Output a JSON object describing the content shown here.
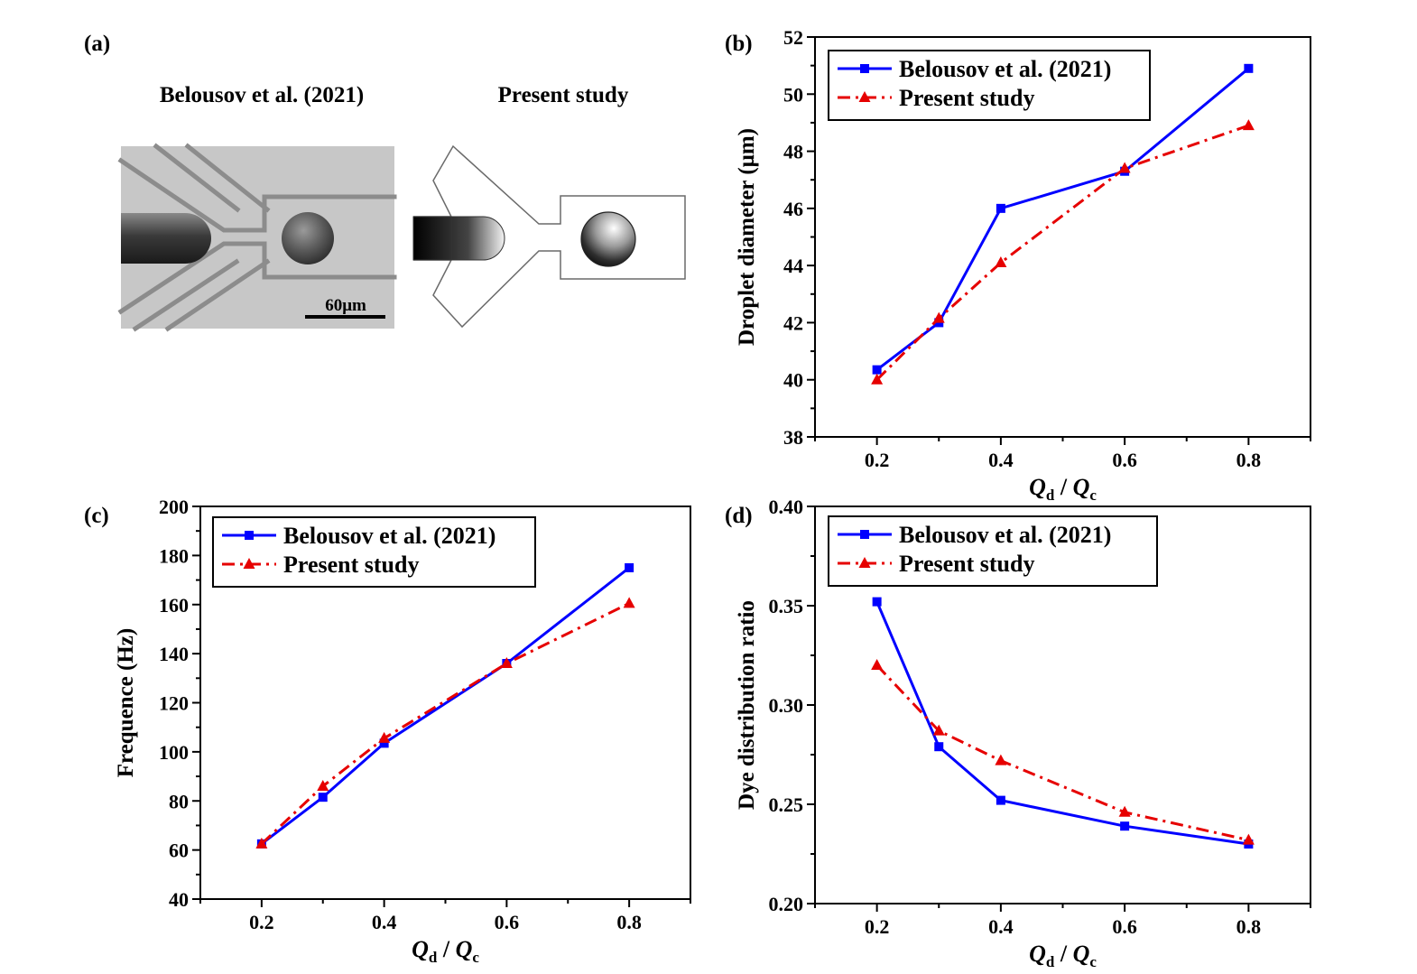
{
  "panel_a": {
    "label": "(a)",
    "left_title": "Belousov et al. (2021)",
    "right_title": "Present study",
    "scale_bar_label": "60μm"
  },
  "chart_data": [
    {
      "panel": "(b)",
      "type": "line",
      "xlabel": "Q_d / Q_c",
      "ylabel": "Droplet diameter (μm)",
      "xlim": [
        0.1,
        0.9
      ],
      "ylim": [
        38,
        52
      ],
      "xticks": [
        "0.2",
        "0.4",
        "0.6",
        "0.8"
      ],
      "xtick_values": [
        0.2,
        0.4,
        0.6,
        0.8
      ],
      "yticks": [
        "38",
        "40",
        "42",
        "44",
        "46",
        "48",
        "50",
        "52"
      ],
      "ytick_values": [
        38,
        40,
        42,
        44,
        46,
        48,
        50,
        52
      ],
      "legend_position": "top-left",
      "series": [
        {
          "name": "Belousov et al. (2021)",
          "color": "#0000ff",
          "marker": "square",
          "dash": "solid",
          "x": [
            0.2,
            0.3,
            0.4,
            0.6,
            0.8
          ],
          "y": [
            40.35,
            42.0,
            46.0,
            47.3,
            50.9
          ]
        },
        {
          "name": "Present study",
          "color": "#e60000",
          "marker": "triangle",
          "dash": "dashdot",
          "x": [
            0.2,
            0.3,
            0.4,
            0.6,
            0.8
          ],
          "y": [
            40.0,
            42.15,
            44.1,
            47.4,
            48.9
          ]
        }
      ]
    },
    {
      "panel": "(c)",
      "type": "line",
      "xlabel": "Q_d / Q_c",
      "ylabel": "Frequence (Hz)",
      "xlim": [
        0.1,
        0.9
      ],
      "ylim": [
        40,
        200
      ],
      "xticks": [
        "0.2",
        "0.4",
        "0.6",
        "0.8"
      ],
      "xtick_values": [
        0.2,
        0.4,
        0.6,
        0.8
      ],
      "yticks": [
        "40",
        "60",
        "80",
        "100",
        "120",
        "140",
        "160",
        "180",
        "200"
      ],
      "ytick_values": [
        40,
        60,
        80,
        100,
        120,
        140,
        160,
        180,
        200
      ],
      "legend_position": "top-left",
      "series": [
        {
          "name": "Belousov et al. (2021)",
          "color": "#0000ff",
          "marker": "square",
          "dash": "solid",
          "x": [
            0.2,
            0.3,
            0.4,
            0.6,
            0.8
          ],
          "y": [
            62.5,
            81.5,
            103.5,
            136.0,
            175.0
          ]
        },
        {
          "name": "Present study",
          "color": "#e60000",
          "marker": "triangle",
          "dash": "dashdot",
          "x": [
            0.2,
            0.3,
            0.4,
            0.6,
            0.8
          ],
          "y": [
            62.5,
            86.0,
            105.5,
            136.0,
            160.5
          ]
        }
      ]
    },
    {
      "panel": "(d)",
      "type": "line",
      "xlabel": "Q_d / Q_c",
      "ylabel": "Dye distribution ratio",
      "xlim": [
        0.1,
        0.9
      ],
      "ylim": [
        0.2,
        0.4
      ],
      "xticks": [
        "0.2",
        "0.4",
        "0.6",
        "0.8"
      ],
      "xtick_values": [
        0.2,
        0.4,
        0.6,
        0.8
      ],
      "yticks": [
        "0.20",
        "0.25",
        "0.30",
        "0.35",
        "0.40"
      ],
      "ytick_values": [
        0.2,
        0.25,
        0.3,
        0.35,
        0.4
      ],
      "legend_position": "top-left",
      "series": [
        {
          "name": "Belousov et al. (2021)",
          "color": "#0000ff",
          "marker": "square",
          "dash": "solid",
          "x": [
            0.2,
            0.3,
            0.4,
            0.6,
            0.8
          ],
          "y": [
            0.352,
            0.279,
            0.252,
            0.239,
            0.23
          ]
        },
        {
          "name": "Present study",
          "color": "#e60000",
          "marker": "triangle",
          "dash": "dashdot",
          "x": [
            0.2,
            0.3,
            0.4,
            0.6,
            0.8
          ],
          "y": [
            0.32,
            0.287,
            0.272,
            0.246,
            0.232
          ]
        }
      ]
    }
  ]
}
